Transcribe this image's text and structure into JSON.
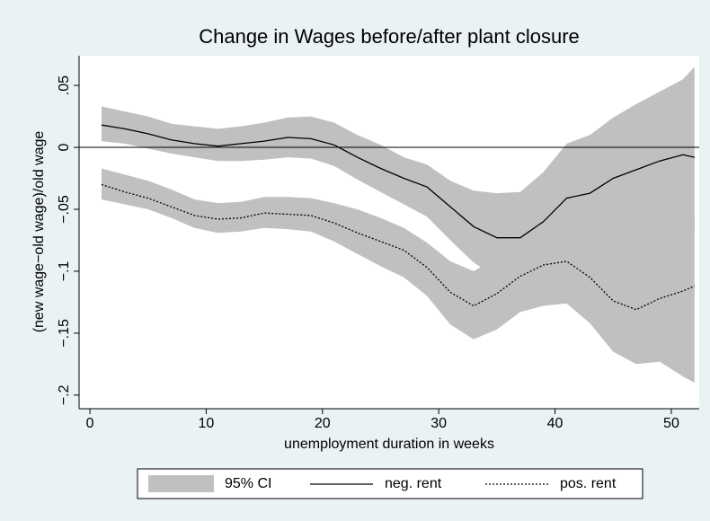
{
  "chart_data": {
    "type": "line",
    "title": "Change in Wages before/after plant closure",
    "x_label": "unemployment duration in weeks",
    "y_label": "(new wage−old wage)/old wage",
    "x": [
      1,
      3,
      5,
      7,
      9,
      11,
      13,
      15,
      17,
      19,
      21,
      23,
      25,
      27,
      29,
      31,
      33,
      35,
      37,
      39,
      41,
      43,
      45,
      47,
      49,
      51,
      52
    ],
    "ci": {
      "name": "95% CI",
      "color": "#c0c0c0"
    },
    "series": [
      {
        "name": "neg. rent",
        "color": "#000000",
        "dashed": false,
        "values": [
          0.018,
          0.015,
          0.011,
          0.006,
          0.003,
          0.001,
          0.003,
          0.005,
          0.008,
          0.007,
          0.002,
          -0.008,
          -0.017,
          -0.025,
          -0.032,
          -0.048,
          -0.064,
          -0.073,
          -0.073,
          -0.06,
          -0.041,
          -0.037,
          -0.025,
          -0.018,
          -0.011,
          -0.006,
          -0.008
        ],
        "ci_upper": [
          0.033,
          0.029,
          0.025,
          0.019,
          0.017,
          0.015,
          0.017,
          0.02,
          0.024,
          0.025,
          0.02,
          0.01,
          0.002,
          -0.008,
          -0.014,
          -0.027,
          -0.035,
          -0.037,
          -0.036,
          -0.02,
          0.003,
          0.01,
          0.024,
          0.035,
          0.045,
          0.055,
          0.065
        ],
        "ci_lower": [
          0.005,
          0.003,
          -0.001,
          -0.005,
          -0.008,
          -0.011,
          -0.011,
          -0.01,
          -0.008,
          -0.009,
          -0.015,
          -0.026,
          -0.036,
          -0.046,
          -0.056,
          -0.075,
          -0.093,
          -0.105,
          -0.108,
          -0.1,
          -0.087,
          -0.08,
          -0.084,
          -0.073,
          -0.07,
          -0.068,
          -0.07
        ]
      },
      {
        "name": "pos. rent",
        "color": "#000000",
        "dashed": true,
        "values": [
          -0.03,
          -0.036,
          -0.041,
          -0.048,
          -0.055,
          -0.058,
          -0.057,
          -0.053,
          -0.054,
          -0.055,
          -0.061,
          -0.069,
          -0.076,
          -0.083,
          -0.097,
          -0.117,
          -0.128,
          -0.118,
          -0.104,
          -0.095,
          -0.092,
          -0.105,
          -0.124,
          -0.131,
          -0.122,
          -0.116,
          -0.112
        ],
        "ci_upper": [
          -0.017,
          -0.022,
          -0.027,
          -0.034,
          -0.042,
          -0.045,
          -0.044,
          -0.04,
          -0.04,
          -0.041,
          -0.045,
          -0.05,
          -0.057,
          -0.065,
          -0.077,
          -0.092,
          -0.1,
          -0.089,
          -0.077,
          -0.062,
          -0.06,
          -0.07,
          -0.078,
          -0.072,
          -0.068,
          -0.06,
          -0.055
        ],
        "ci_lower": [
          -0.042,
          -0.046,
          -0.05,
          -0.057,
          -0.065,
          -0.069,
          -0.068,
          -0.065,
          -0.066,
          -0.068,
          -0.076,
          -0.086,
          -0.096,
          -0.105,
          -0.12,
          -0.143,
          -0.155,
          -0.147,
          -0.133,
          -0.128,
          -0.126,
          -0.142,
          -0.165,
          -0.175,
          -0.173,
          -0.185,
          -0.19
        ]
      }
    ],
    "hline": 0,
    "xlim": [
      -0.93,
      52.4
    ],
    "ylim": [
      -0.211,
      0.074
    ],
    "xticks": [
      0,
      10,
      20,
      30,
      40,
      50
    ],
    "yticks": [
      {
        "value": 0.05,
        "label": ".05"
      },
      0,
      {
        "value": -0.05,
        "label": "−.05"
      },
      {
        "value": -0.1,
        "label": "−.1"
      },
      {
        "value": -0.15,
        "label": "−.15"
      },
      {
        "value": -0.2,
        "label": "−.2"
      }
    ],
    "grid": false,
    "legend_position": "bottom"
  }
}
